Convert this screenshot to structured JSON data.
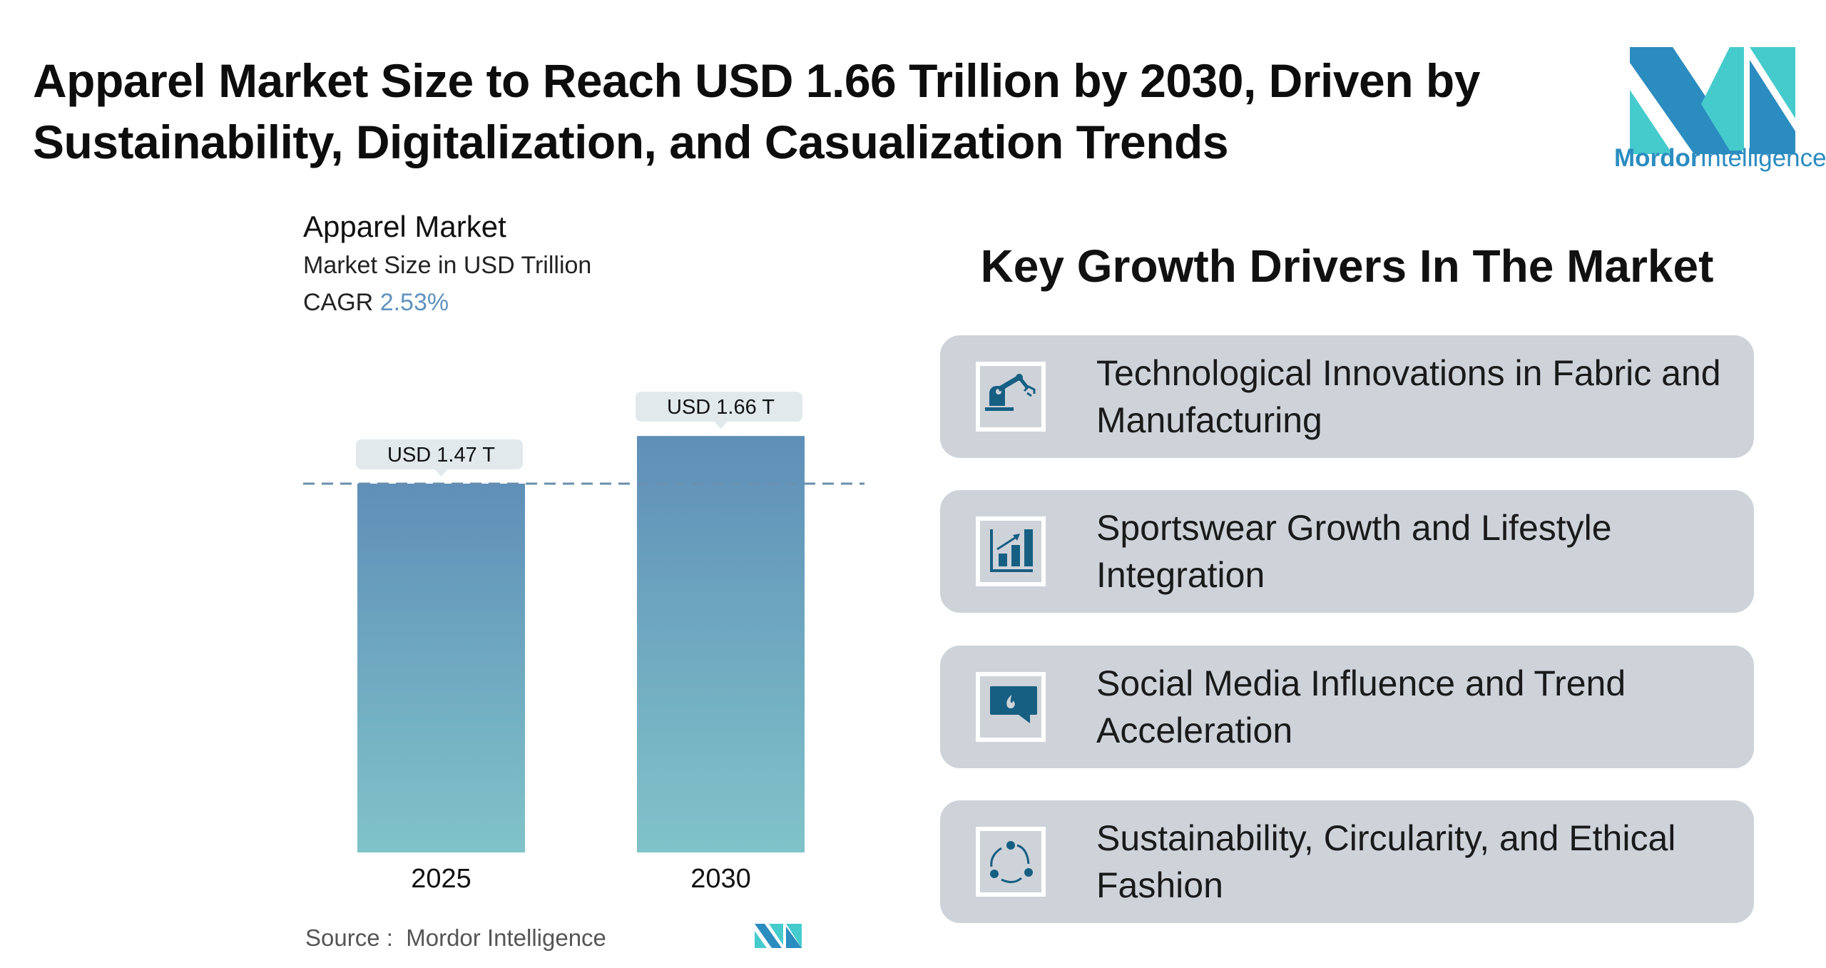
{
  "header": {
    "title": "Apparel Market Size to Reach USD 1.66 Trillion by 2030, Driven by Sustainability, Digitalization, and Casualization Trends",
    "logo_text_bold": "Mordor",
    "logo_text_light": "Intelligence"
  },
  "chart_head": {
    "title": "Apparel Market",
    "subtitle": "Market Size in USD Trillion",
    "cagr_label": "CAGR",
    "cagr_value": "2.53%"
  },
  "chart_data": {
    "type": "bar",
    "title": "Apparel Market",
    "ylabel": "Market Size in USD Trillion",
    "categories": [
      "2025",
      "2030"
    ],
    "values": [
      1.47,
      1.66
    ],
    "data_labels": [
      "USD 1.47 T",
      "USD 1.66 T"
    ],
    "ylim": [
      0,
      1.66
    ],
    "grid": false,
    "reference_line": 1.47,
    "colors": {
      "bar_top": "#5f8fb8",
      "bar_bottom": "#80c3c9",
      "label_bg": "#e1e9ec",
      "dash": "#6b8fae"
    }
  },
  "source": {
    "label": "Source :",
    "value": "Mordor Intelligence"
  },
  "drivers": {
    "title": "Key Growth Drivers In The Market",
    "items": [
      {
        "label": "Technological Innovations in Fabric and Manufacturing",
        "icon": "robot-arm-icon"
      },
      {
        "label": "Sportswear Growth and Lifestyle Integration",
        "icon": "growth-chart-icon"
      },
      {
        "label": "Social Media Influence and Trend Acceleration",
        "icon": "chat-flame-icon"
      },
      {
        "label": "Sustainability, Circularity, and Ethical Fashion",
        "icon": "cycle-icon"
      }
    ]
  },
  "colors": {
    "brand_dark": "#2b8cc0",
    "brand_light": "#46cbcd",
    "icon": "#175f82",
    "card": "#ced3da"
  }
}
